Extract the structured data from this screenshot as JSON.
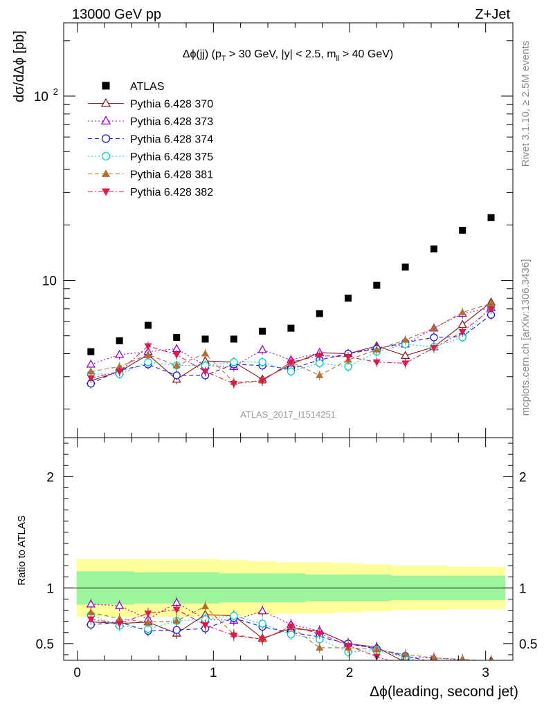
{
  "header": {
    "left": "13000 GeV pp",
    "right": "Z+Jet"
  },
  "side_labels": {
    "rivet": "Rivet 3.1.10, ≥ 2.5M events",
    "mcplots": "mcplots.cern.ch [arXiv:1306.3436]"
  },
  "chart_data": {
    "type": "scatter",
    "title": "Δϕ(jj) (pT > 30 GeV, |y| < 2.5, mll > 40 GeV)",
    "watermark": "ATLAS_2017_I1514251",
    "ylabel": "dσ/dΔϕ [pb]",
    "ratio_ylabel": "Ratio to ATLAS",
    "xlabel": "Δϕ(leading, second jet)",
    "xlim": [
      -0.1,
      3.2
    ],
    "ylim": [
      1.4,
      250
    ],
    "yscale": "log",
    "ratio_ylim": [
      0.35,
      2.35
    ],
    "x_ticks": [
      "0",
      "1",
      "2",
      "3"
    ],
    "y_ticks": [
      "10",
      "10^2"
    ],
    "ratio_ticks": [
      "0.5",
      "1",
      "2"
    ],
    "legend_position": "top-left",
    "x": [
      0.1,
      0.31,
      0.52,
      0.73,
      0.94,
      1.15,
      1.36,
      1.57,
      1.78,
      1.99,
      2.2,
      2.41,
      2.62,
      2.83,
      3.04
    ],
    "series": [
      {
        "name": "ATLAS",
        "color": "#000000",
        "marker": "square",
        "line": "none",
        "values": [
          4.1,
          4.7,
          5.7,
          4.9,
          4.8,
          4.8,
          5.3,
          5.5,
          6.6,
          8.0,
          9.4,
          11.8,
          14.8,
          18.7,
          21.9
        ]
      },
      {
        "name": "Pythia 6.428 370",
        "color": "#8b1a1a",
        "marker": "triangle-open",
        "line": "solid",
        "values": [
          2.85,
          3.2,
          3.95,
          2.9,
          3.65,
          3.6,
          2.9,
          3.5,
          4.05,
          4.0,
          4.4,
          3.9,
          4.35,
          5.75,
          7.6
        ]
      },
      {
        "name": "Pythia 6.428 373",
        "color": "#9400d3",
        "marker": "triangle-open",
        "line": "dotted",
        "values": [
          3.5,
          3.95,
          4.1,
          4.25,
          3.45,
          3.4,
          4.2,
          3.7,
          4.05,
          4.0,
          4.3,
          4.5,
          5.5,
          6.6,
          7.1
        ]
      },
      {
        "name": "Pythia 6.428 374",
        "color": "#1a1ae0",
        "marker": "circle-open",
        "line": "dashed",
        "values": [
          2.75,
          3.25,
          3.5,
          3.05,
          3.05,
          3.5,
          3.45,
          3.3,
          3.7,
          4.0,
          4.25,
          4.6,
          4.9,
          4.95,
          6.5
        ]
      },
      {
        "name": "Pythia 6.428 375",
        "color": "#00d0c0",
        "marker": "circle-open",
        "line": "dotted",
        "values": [
          3.1,
          3.1,
          3.6,
          3.45,
          3.45,
          3.6,
          3.6,
          3.2,
          3.55,
          3.4,
          4.1,
          4.5,
          4.35,
          4.9,
          7.2
        ]
      },
      {
        "name": "Pythia 6.428 381",
        "color": "#b07030",
        "marker": "triangle-filled",
        "line": "dashed",
        "values": [
          3.2,
          3.4,
          3.95,
          3.45,
          4.0,
          2.8,
          2.85,
          3.6,
          3.05,
          3.7,
          4.2,
          4.75,
          5.5,
          6.7,
          7.5
        ]
      },
      {
        "name": "Pythia 6.428 382",
        "color": "#e0194d",
        "marker": "triangle-down-filled",
        "line": "dashdot",
        "values": [
          2.95,
          3.2,
          4.4,
          3.95,
          3.2,
          2.75,
          2.85,
          3.6,
          3.9,
          3.85,
          3.6,
          3.55,
          4.3,
          5.25,
          7.0
        ]
      }
    ],
    "ratio_band": {
      "inner": [
        0.15,
        0.15,
        0.14,
        0.14,
        0.14,
        0.13,
        0.13,
        0.13,
        0.12,
        0.12,
        0.12,
        0.11,
        0.11,
        0.11,
        0.11
      ],
      "outer": [
        0.26,
        0.26,
        0.26,
        0.26,
        0.26,
        0.25,
        0.24,
        0.23,
        0.23,
        0.22,
        0.21,
        0.2,
        0.2,
        0.19,
        0.19
      ],
      "inner_color": "#9cf59c",
      "outer_color": "#ffff99"
    }
  }
}
